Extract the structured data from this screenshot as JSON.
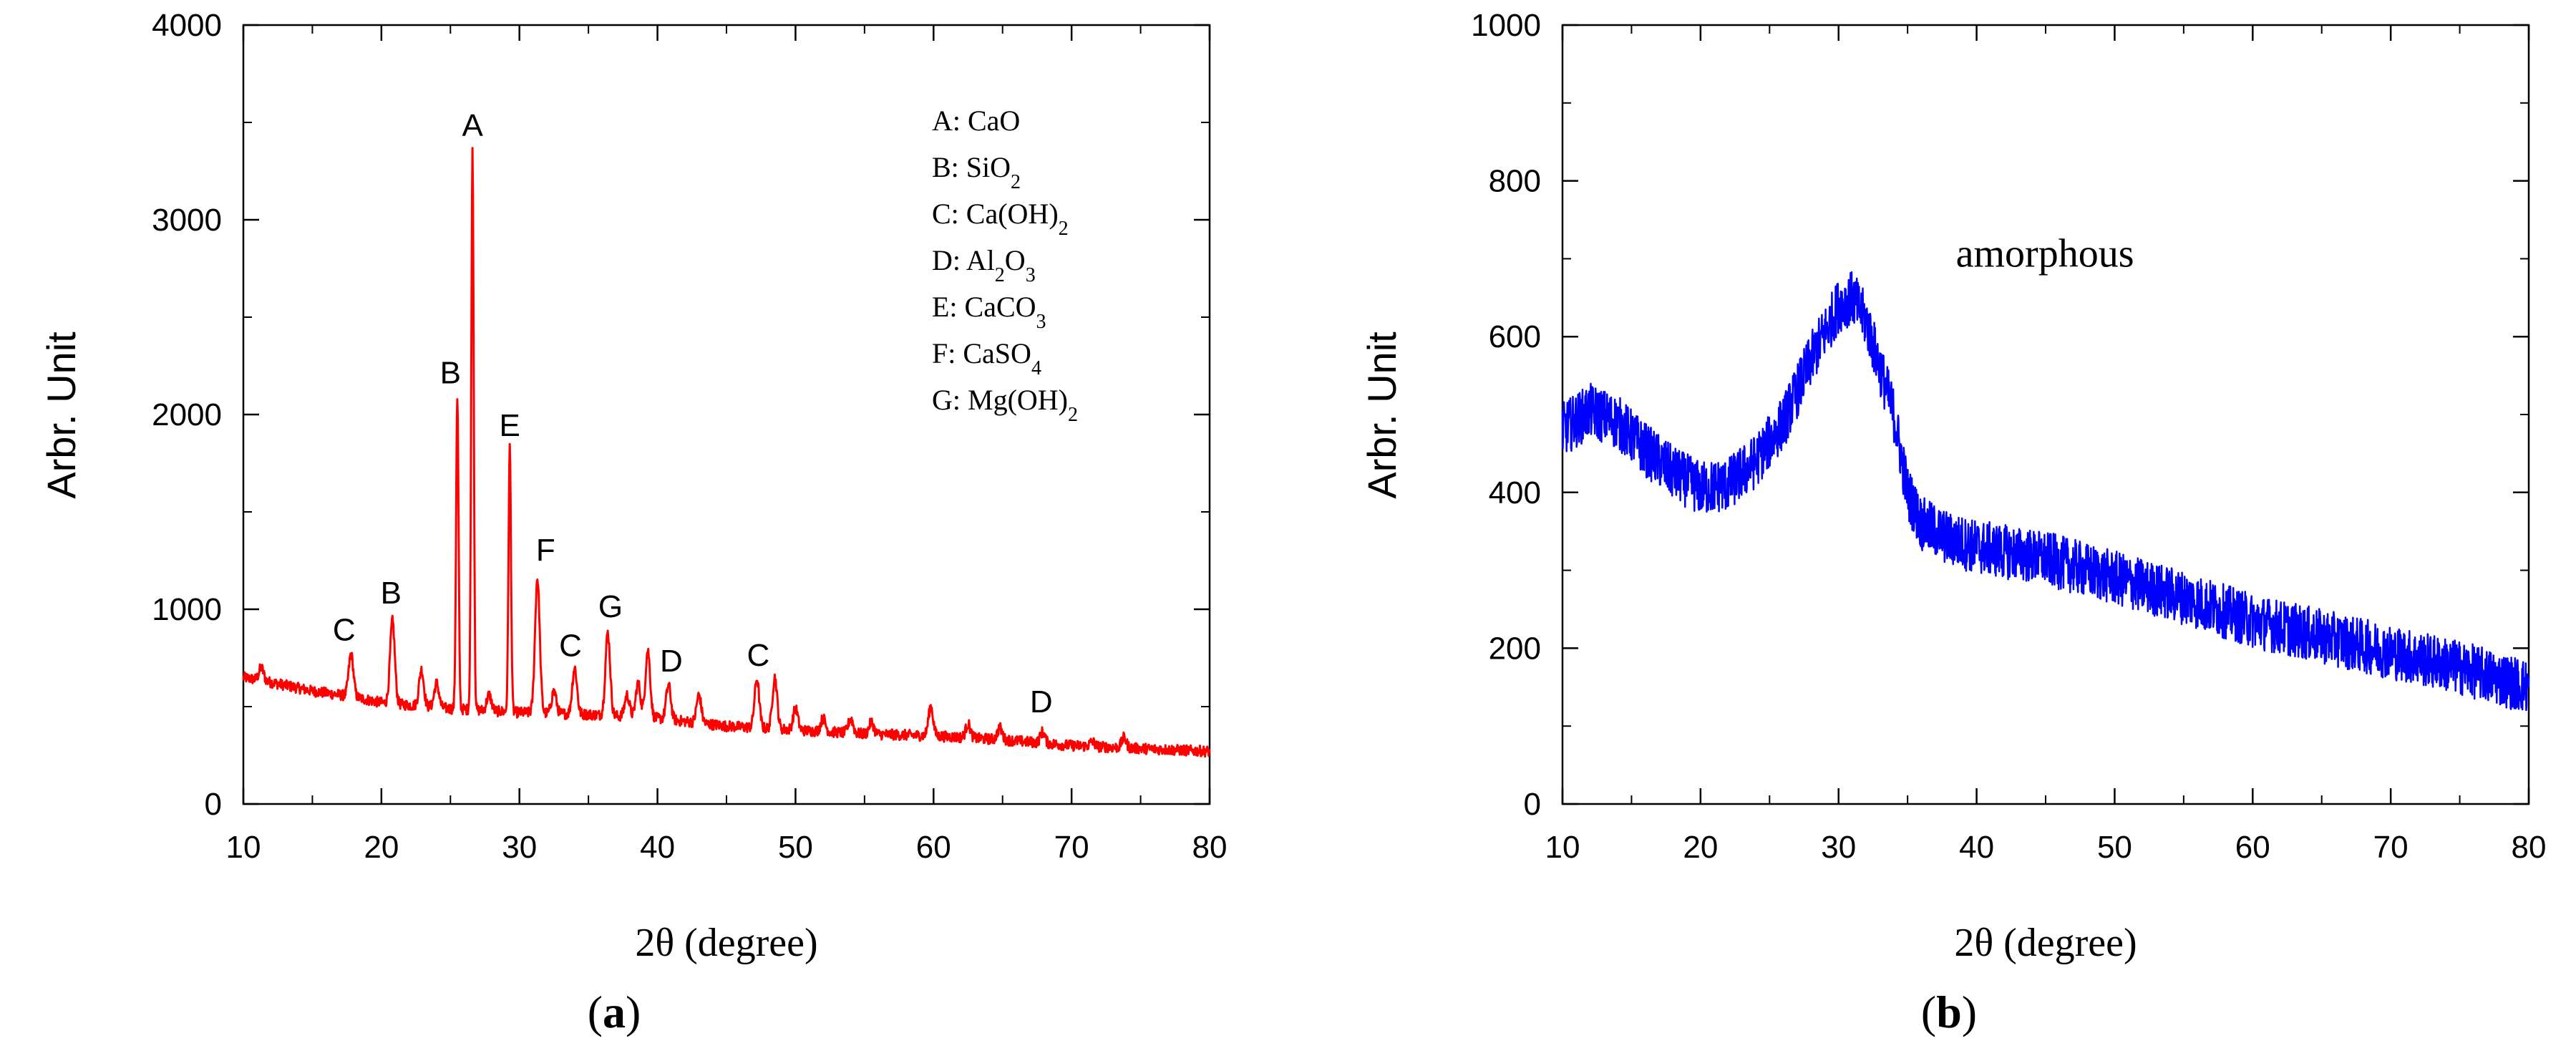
{
  "chart_data": [
    {
      "panel": "a",
      "type": "line",
      "panel_label_paren_open": "(",
      "panel_label_letter": "a",
      "panel_label_paren_close": ")",
      "xlabel": "2θ (degree)",
      "ylabel": "Arbr. Unit",
      "xlim": [
        10,
        80
      ],
      "ylim": [
        0,
        4000
      ],
      "xticks": [
        10,
        20,
        30,
        40,
        50,
        60,
        70,
        80
      ],
      "yticks": [
        0,
        1000,
        2000,
        3000,
        4000
      ],
      "grid": false,
      "color": "#ff0000",
      "baseline": [
        [
          10,
          650
        ],
        [
          12,
          625
        ],
        [
          15,
          580
        ],
        [
          18,
          550
        ],
        [
          20,
          520
        ],
        [
          25,
          490
        ],
        [
          30,
          470
        ],
        [
          35,
          460
        ],
        [
          40,
          440
        ],
        [
          45,
          400
        ],
        [
          50,
          380
        ],
        [
          55,
          360
        ],
        [
          60,
          350
        ],
        [
          65,
          330
        ],
        [
          70,
          300
        ],
        [
          75,
          285
        ],
        [
          80,
          270
        ]
      ],
      "peaks": [
        {
          "x": 11.3,
          "y": 700
        },
        {
          "x": 17.8,
          "y": 770
        },
        {
          "x": 20.8,
          "y": 940
        },
        {
          "x": 22.9,
          "y": 690
        },
        {
          "x": 24.0,
          "y": 620
        },
        {
          "x": 25.5,
          "y": 2080
        },
        {
          "x": 26.6,
          "y": 3350
        },
        {
          "x": 27.8,
          "y": 560
        },
        {
          "x": 29.3,
          "y": 1830
        },
        {
          "x": 31.3,
          "y": 1160
        },
        {
          "x": 32.5,
          "y": 580
        },
        {
          "x": 34.0,
          "y": 700
        },
        {
          "x": 36.4,
          "y": 880
        },
        {
          "x": 37.8,
          "y": 560
        },
        {
          "x": 38.6,
          "y": 620
        },
        {
          "x": 39.3,
          "y": 790
        },
        {
          "x": 40.8,
          "y": 610
        },
        {
          "x": 43.0,
          "y": 560
        },
        {
          "x": 47.2,
          "y": 640
        },
        {
          "x": 48.5,
          "y": 650
        },
        {
          "x": 50.0,
          "y": 490
        },
        {
          "x": 52.0,
          "y": 440
        },
        {
          "x": 54.0,
          "y": 440
        },
        {
          "x": 55.5,
          "y": 420
        },
        {
          "x": 59.8,
          "y": 500
        },
        {
          "x": 62.5,
          "y": 410
        },
        {
          "x": 64.8,
          "y": 390
        },
        {
          "x": 67.9,
          "y": 370
        },
        {
          "x": 71.5,
          "y": 320
        },
        {
          "x": 73.8,
          "y": 340
        }
      ],
      "peak_labels": [
        {
          "text": "C",
          "x": 17.3,
          "y": 840
        },
        {
          "text": "B",
          "x": 20.7,
          "y": 1030
        },
        {
          "text": "B",
          "x": 25.0,
          "y": 2160
        },
        {
          "text": "A",
          "x": 26.6,
          "y": 3430
        },
        {
          "text": "E",
          "x": 29.3,
          "y": 1890
        },
        {
          "text": "F",
          "x": 31.9,
          "y": 1250
        },
        {
          "text": "C",
          "x": 33.7,
          "y": 760
        },
        {
          "text": "G",
          "x": 36.6,
          "y": 960
        },
        {
          "text": "D",
          "x": 41.0,
          "y": 680
        },
        {
          "text": "C",
          "x": 47.3,
          "y": 710
        },
        {
          "text": "D",
          "x": 67.8,
          "y": 470
        }
      ],
      "legend_position": "top-right",
      "legend": [
        {
          "prefix": "A: CaO",
          "sub1": "",
          "mid": "",
          "sub2": "",
          "suffix": ""
        },
        {
          "prefix": "B: SiO",
          "sub1": "2",
          "mid": "",
          "sub2": "",
          "suffix": ""
        },
        {
          "prefix": "C: Ca(OH)",
          "sub1": "2",
          "mid": "",
          "sub2": "",
          "suffix": ""
        },
        {
          "prefix": "D: Al",
          "sub1": "2",
          "mid": "O",
          "sub2": "3",
          "suffix": ""
        },
        {
          "prefix": "E: CaCO",
          "sub1": "3",
          "mid": "",
          "sub2": "",
          "suffix": ""
        },
        {
          "prefix": "F: CaSO",
          "sub1": "4",
          "mid": "",
          "sub2": "",
          "suffix": ""
        },
        {
          "prefix": "G: Mg(OH)",
          "sub1": "2",
          "mid": "",
          "sub2": "",
          "suffix": ""
        }
      ]
    },
    {
      "panel": "b",
      "type": "line",
      "panel_label_paren_open": "(",
      "panel_label_letter": "b",
      "panel_label_paren_close": ")",
      "xlabel": "2θ (degree)",
      "ylabel": "Arbr. Unit",
      "xlim": [
        10,
        80
      ],
      "ylim": [
        0,
        1000
      ],
      "xticks": [
        10,
        20,
        30,
        40,
        50,
        60,
        70,
        80
      ],
      "yticks": [
        0,
        200,
        400,
        600,
        800,
        1000
      ],
      "grid": false,
      "color": "#0000ff",
      "series": [
        [
          10,
          480
        ],
        [
          12,
          505
        ],
        [
          14,
          490
        ],
        [
          16,
          455
        ],
        [
          18,
          425
        ],
        [
          20,
          405
        ],
        [
          22,
          410
        ],
        [
          24,
          440
        ],
        [
          26,
          490
        ],
        [
          28,
          570
        ],
        [
          30,
          640
        ],
        [
          31,
          650
        ],
        [
          32,
          620
        ],
        [
          34,
          500
        ],
        [
          35,
          400
        ],
        [
          36,
          360
        ],
        [
          38,
          340
        ],
        [
          40,
          330
        ],
        [
          45,
          315
        ],
        [
          48,
          300
        ],
        [
          50,
          290
        ],
        [
          55,
          265
        ],
        [
          60,
          235
        ],
        [
          65,
          215
        ],
        [
          70,
          195
        ],
        [
          75,
          175
        ],
        [
          80,
          150
        ]
      ],
      "annotation": {
        "text": "amorphous",
        "x": 38.5,
        "y": 690
      }
    }
  ]
}
